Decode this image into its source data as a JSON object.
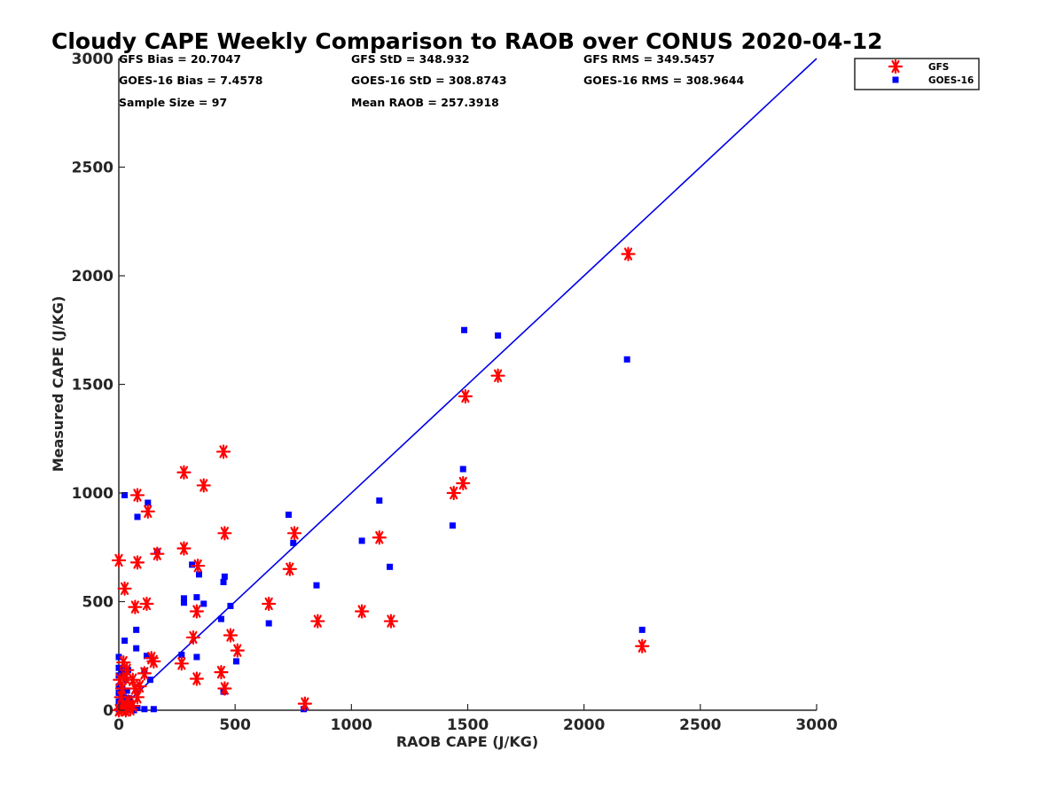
{
  "chart_data": {
    "type": "scatter",
    "title": "Cloudy CAPE Weekly Comparison to RAOB over CONUS 2020-04-12",
    "xlabel": "RAOB CAPE (J/KG)",
    "ylabel": "Measured CAPE (J/KG)",
    "xlim": [
      0,
      3000
    ],
    "ylim": [
      0,
      3000
    ],
    "xticks": [
      "0",
      "500",
      "1000",
      "1500",
      "2000",
      "2500",
      "3000"
    ],
    "yticks": [
      "0",
      "500",
      "1000",
      "1500",
      "2000",
      "2500",
      "3000"
    ],
    "grid": false,
    "legend_position": "top-right",
    "reference_line": {
      "x": [
        0,
        3000
      ],
      "y": [
        0,
        3000
      ],
      "color": "#0000e6"
    },
    "stats": [
      "GFS Bias = 20.7047",
      "GFS StD = 348.932",
      "GFS RMS = 349.5457",
      "GOES-16 Bias = 7.4578",
      "GOES-16 StD = 308.8743",
      "GOES-16 RMS = 308.9644",
      "Sample Size = 97",
      "Mean RAOB = 257.3918"
    ],
    "series": [
      {
        "name": "GFS",
        "marker": "asterisk",
        "color": "#ff0000",
        "points": [
          [
            2190,
            2100
          ],
          [
            1630,
            1540
          ],
          [
            1490,
            1445
          ],
          [
            1480,
            1045
          ],
          [
            1440,
            1000
          ],
          [
            1120,
            795
          ],
          [
            1045,
            455
          ],
          [
            1170,
            410
          ],
          [
            2250,
            295
          ],
          [
            855,
            410
          ],
          [
            800,
            30
          ],
          [
            755,
            815
          ],
          [
            735,
            650
          ],
          [
            645,
            490
          ],
          [
            450,
            1190
          ],
          [
            365,
            1035
          ],
          [
            280,
            1095
          ],
          [
            455,
            815
          ],
          [
            280,
            745
          ],
          [
            340,
            665
          ],
          [
            480,
            345
          ],
          [
            510,
            275
          ],
          [
            320,
            335
          ],
          [
            335,
            455
          ],
          [
            440,
            175
          ],
          [
            335,
            145
          ],
          [
            455,
            100
          ],
          [
            270,
            215
          ],
          [
            165,
            720
          ],
          [
            150,
            225
          ],
          [
            140,
            240
          ],
          [
            80,
            990
          ],
          [
            125,
            915
          ],
          [
            80,
            680
          ],
          [
            0,
            690
          ],
          [
            120,
            490
          ],
          [
            70,
            475
          ],
          [
            25,
            560
          ],
          [
            110,
            170
          ],
          [
            90,
            110
          ],
          [
            30,
            150
          ],
          [
            20,
            220
          ],
          [
            35,
            185
          ],
          [
            5,
            140
          ],
          [
            60,
            140
          ],
          [
            70,
            100
          ],
          [
            15,
            100
          ],
          [
            80,
            60
          ],
          [
            10,
            60
          ],
          [
            40,
            40
          ],
          [
            20,
            20
          ],
          [
            60,
            20
          ],
          [
            0,
            0
          ],
          [
            30,
            0
          ],
          [
            50,
            5
          ],
          [
            10,
            5
          ]
        ]
      },
      {
        "name": "GOES-16",
        "marker": "square",
        "color": "#0000ff",
        "points": [
          [
            1485,
            1750
          ],
          [
            1630,
            1725
          ],
          [
            2185,
            1615
          ],
          [
            1480,
            1110
          ],
          [
            1120,
            965
          ],
          [
            1435,
            850
          ],
          [
            1045,
            780
          ],
          [
            1165,
            660
          ],
          [
            850,
            575
          ],
          [
            2250,
            370
          ],
          [
            795,
            5
          ],
          [
            730,
            900
          ],
          [
            750,
            770
          ],
          [
            645,
            400
          ],
          [
            455,
            615
          ],
          [
            450,
            590
          ],
          [
            480,
            480
          ],
          [
            440,
            420
          ],
          [
            505,
            225
          ],
          [
            450,
            85
          ],
          [
            315,
            670
          ],
          [
            345,
            625
          ],
          [
            335,
            520
          ],
          [
            365,
            490
          ],
          [
            280,
            515
          ],
          [
            280,
            495
          ],
          [
            270,
            255
          ],
          [
            335,
            245
          ],
          [
            165,
            730
          ],
          [
            125,
            955
          ],
          [
            80,
            890
          ],
          [
            25,
            990
          ],
          [
            75,
            370
          ],
          [
            75,
            285
          ],
          [
            25,
            320
          ],
          [
            120,
            250
          ],
          [
            135,
            140
          ],
          [
            110,
            180
          ],
          [
            150,
            5
          ],
          [
            0,
            245
          ],
          [
            0,
            195
          ],
          [
            25,
            195
          ],
          [
            40,
            185
          ],
          [
            15,
            170
          ],
          [
            0,
            160
          ],
          [
            30,
            140
          ],
          [
            0,
            110
          ],
          [
            15,
            100
          ],
          [
            35,
            90
          ],
          [
            0,
            80
          ],
          [
            20,
            60
          ],
          [
            45,
            55
          ],
          [
            0,
            40
          ],
          [
            30,
            30
          ],
          [
            55,
            25
          ],
          [
            80,
            10
          ],
          [
            110,
            5
          ],
          [
            0,
            5
          ],
          [
            20,
            0
          ],
          [
            45,
            5
          ],
          [
            65,
            0
          ],
          [
            10,
            20
          ]
        ]
      }
    ]
  }
}
